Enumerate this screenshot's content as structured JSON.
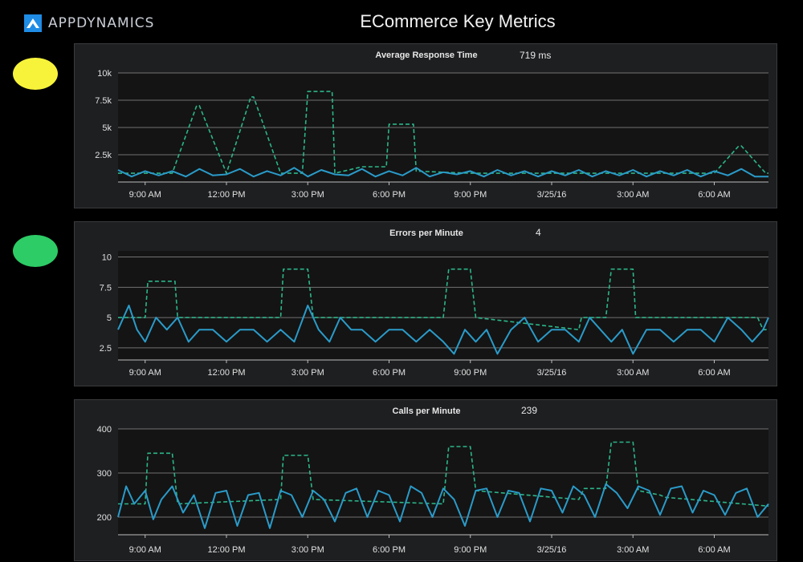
{
  "header": {
    "logo_text": "APPDYNAMICS",
    "title": "ECommerce Key Metrics"
  },
  "colors": {
    "background": "#000000",
    "panel_bg": "#1e1f21",
    "plot_bg": "#141414",
    "series_current": "#2a9bc9",
    "series_baseline": "#2bb58a",
    "status_yellow": "#f7f33b",
    "status_green": "#2dcc66"
  },
  "panels": [
    {
      "title": "Average Response Time",
      "value": "719 ms",
      "status": "yellow",
      "status_color": "#f7f33b"
    },
    {
      "title": "Errors per Minute",
      "value": "4",
      "status": "green",
      "status_color": "#2dcc66"
    },
    {
      "title": "Calls per Minute",
      "value": "239",
      "status": "none"
    }
  ],
  "chart_data": [
    {
      "type": "line",
      "title": "Average Response Time",
      "x_ticks": [
        "9:00 AM",
        "12:00 PM",
        "3:00 PM",
        "6:00 PM",
        "9:00 PM",
        "3/25/16",
        "3:00 AM",
        "6:00 AM"
      ],
      "y_ticks": [
        "10k",
        "7.5k",
        "5k",
        "2.5k"
      ],
      "y_tick_values": [
        10000,
        7500,
        5000,
        2500
      ],
      "ylim": [
        0,
        10000
      ],
      "x_hours": [
        8,
        32
      ],
      "series": [
        {
          "role": "baseline",
          "style": "dashed",
          "x": [
            8,
            9,
            10,
            10.9,
            11,
            12,
            12.9,
            13,
            14,
            14.8,
            15,
            15.9,
            16,
            17,
            17.9,
            18,
            18.9,
            19,
            20,
            21,
            22,
            23,
            24,
            25,
            26,
            27,
            28,
            29,
            30,
            30.9,
            31,
            31.9,
            32
          ],
          "y": [
            800,
            800,
            800,
            7000,
            7000,
            800,
            7800,
            7800,
            800,
            800,
            8300,
            8300,
            800,
            1400,
            1400,
            5300,
            5300,
            1000,
            900,
            800,
            800,
            800,
            800,
            800,
            800,
            800,
            800,
            800,
            800,
            3300,
            3300,
            800,
            800
          ]
        },
        {
          "role": "current",
          "style": "solid",
          "x": [
            8,
            8.5,
            9,
            9.5,
            10,
            10.5,
            11,
            11.5,
            12,
            12.5,
            13,
            13.5,
            14,
            14.5,
            15,
            15.5,
            16,
            16.5,
            17,
            17.5,
            18,
            18.5,
            19,
            19.5,
            20,
            20.5,
            21,
            21.5,
            22,
            22.5,
            23,
            23.5,
            24,
            24.5,
            25,
            25.5,
            26,
            26.5,
            27,
            27.5,
            28,
            28.5,
            29,
            29.5,
            30,
            30.5,
            31,
            31.5,
            32
          ],
          "y": [
            1100,
            500,
            1000,
            600,
            1000,
            500,
            1200,
            600,
            700,
            1200,
            500,
            1000,
            600,
            1300,
            500,
            1100,
            700,
            600,
            1200,
            500,
            1000,
            600,
            1300,
            500,
            900,
            700,
            1000,
            500,
            1100,
            600,
            1000,
            500,
            1000,
            600,
            1100,
            500,
            1000,
            600,
            1100,
            500,
            1000,
            600,
            1100,
            500,
            1000,
            600,
            1200,
            500,
            500
          ]
        }
      ]
    },
    {
      "type": "line",
      "title": "Errors per Minute",
      "x_ticks": [
        "9:00 AM",
        "12:00 PM",
        "3:00 PM",
        "6:00 PM",
        "9:00 PM",
        "3/25/16",
        "3:00 AM",
        "6:00 AM"
      ],
      "y_ticks": [
        "10",
        "7.5",
        "5",
        "2.5"
      ],
      "y_tick_values": [
        10,
        7.5,
        5,
        2.5
      ],
      "ylim": [
        1.5,
        10.5
      ],
      "x_hours": [
        8,
        32
      ],
      "series": [
        {
          "role": "baseline",
          "style": "dashed",
          "x": [
            8,
            9,
            9.1,
            10.1,
            10.2,
            14,
            14.1,
            15,
            15.2,
            20,
            20.2,
            21,
            21.2,
            25,
            25.1,
            26,
            26.2,
            27,
            27.1,
            28,
            28.2,
            31.6,
            31.8,
            32
          ],
          "y": [
            5,
            5,
            8,
            8,
            5,
            5,
            9,
            9,
            5,
            5,
            9,
            9,
            5,
            4,
            5,
            5,
            9,
            9,
            5,
            5,
            5,
            5,
            4,
            4
          ]
        },
        {
          "role": "current",
          "style": "solid",
          "x": [
            8,
            8.4,
            8.7,
            9,
            9.4,
            9.8,
            10.2,
            10.6,
            11,
            11.5,
            12,
            12.5,
            13,
            13.5,
            14,
            14.5,
            15,
            15.4,
            15.8,
            16.2,
            16.6,
            17,
            17.5,
            18,
            18.5,
            19,
            19.5,
            20,
            20.4,
            20.8,
            21.2,
            21.6,
            22,
            22.5,
            23,
            23.5,
            24,
            24.5,
            25,
            25.4,
            25.8,
            26.2,
            26.6,
            27,
            27.5,
            28,
            28.5,
            29,
            29.5,
            30,
            30.5,
            31,
            31.4,
            31.8,
            32
          ],
          "y": [
            4,
            6,
            4,
            3,
            5,
            4,
            5,
            3,
            4,
            4,
            3,
            4,
            4,
            3,
            4,
            3,
            6,
            4,
            3,
            5,
            4,
            4,
            3,
            4,
            4,
            3,
            4,
            3,
            2,
            4,
            3,
            4,
            2,
            4,
            5,
            3,
            4,
            4,
            3,
            5,
            4,
            3,
            4,
            2,
            4,
            4,
            3,
            4,
            4,
            3,
            5,
            4,
            3,
            4,
            5
          ]
        }
      ]
    },
    {
      "type": "line",
      "title": "Calls per Minute",
      "x_ticks": [
        "9:00 AM",
        "12:00 PM",
        "3:00 PM",
        "6:00 PM",
        "9:00 PM",
        "3/25/16",
        "3:00 AM",
        "6:00 AM"
      ],
      "y_ticks": [
        "400",
        "300",
        "200"
      ],
      "y_tick_values": [
        400,
        300,
        200
      ],
      "ylim": [
        160,
        400
      ],
      "x_hours": [
        8,
        32
      ],
      "series": [
        {
          "role": "baseline",
          "style": "dashed",
          "x": [
            8,
            9,
            9.1,
            10,
            10.2,
            14,
            14.1,
            15,
            15.2,
            20,
            20.2,
            21,
            21.2,
            25,
            25.2,
            26,
            26.2,
            27,
            27.2,
            28,
            28.2,
            32
          ],
          "y": [
            230,
            230,
            345,
            345,
            230,
            240,
            340,
            340,
            240,
            230,
            360,
            360,
            260,
            240,
            265,
            265,
            370,
            370,
            260,
            250,
            245,
            225
          ]
        },
        {
          "role": "current",
          "style": "solid",
          "x": [
            8,
            8.3,
            8.6,
            9,
            9.3,
            9.6,
            10,
            10.4,
            10.8,
            11.2,
            11.6,
            12,
            12.4,
            12.8,
            13.2,
            13.6,
            14,
            14.4,
            14.8,
            15.2,
            15.6,
            16,
            16.4,
            16.8,
            17.2,
            17.6,
            18,
            18.4,
            18.8,
            19.2,
            19.6,
            20,
            20.4,
            20.8,
            21.2,
            21.6,
            22,
            22.4,
            22.8,
            23.2,
            23.6,
            24,
            24.4,
            24.8,
            25.2,
            25.6,
            26,
            26.4,
            26.8,
            27.2,
            27.6,
            28,
            28.4,
            28.8,
            29.2,
            29.6,
            30,
            30.4,
            30.8,
            31.2,
            31.6,
            32
          ],
          "y": [
            200,
            270,
            230,
            260,
            195,
            240,
            270,
            210,
            250,
            175,
            255,
            260,
            180,
            250,
            255,
            175,
            260,
            250,
            200,
            260,
            240,
            190,
            255,
            265,
            200,
            260,
            250,
            190,
            270,
            255,
            200,
            265,
            240,
            180,
            260,
            265,
            200,
            260,
            255,
            190,
            265,
            260,
            210,
            270,
            250,
            200,
            275,
            255,
            220,
            270,
            260,
            205,
            265,
            270,
            210,
            260,
            250,
            205,
            255,
            265,
            200,
            230
          ]
        }
      ]
    }
  ]
}
